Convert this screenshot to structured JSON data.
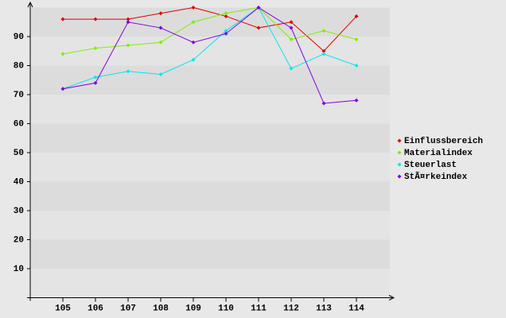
{
  "chart_data": {
    "type": "line",
    "categories": [
      "105",
      "106",
      "107",
      "108",
      "109",
      "110",
      "111",
      "112",
      "113",
      "114"
    ],
    "series": [
      {
        "name": "Einflussbereich",
        "color": "#e00000",
        "values": [
          96,
          96,
          96,
          98,
          100,
          97,
          93,
          95,
          85,
          97
        ]
      },
      {
        "name": "Materialindex",
        "color": "#80ee00",
        "values": [
          84,
          86,
          87,
          88,
          95,
          98,
          100,
          89,
          92,
          89
        ]
      },
      {
        "name": "Steuerlast",
        "color": "#00e8f0",
        "values": [
          72,
          76,
          78,
          77,
          82,
          92,
          100,
          79,
          84,
          80
        ]
      },
      {
        "name": "StÃ¤rkeindex",
        "color": "#8000e0",
        "values": [
          72,
          74,
          95,
          93,
          88,
          91,
          100,
          93,
          67,
          68
        ]
      }
    ],
    "ylim": [
      0,
      100
    ],
    "yticks": [
      10,
      20,
      30,
      40,
      50,
      60,
      70,
      80,
      90
    ],
    "grid": true,
    "legend": "right"
  }
}
